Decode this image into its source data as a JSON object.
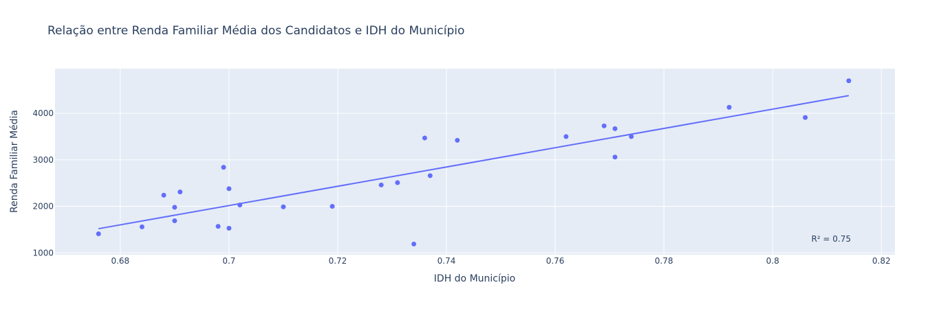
{
  "chart_data": {
    "type": "scatter",
    "title": "Relação entre Renda Familiar Média dos Candidatos e IDH do Município",
    "xlabel": "IDH do Município",
    "ylabel": "Renda Familiar Média",
    "xlim": [
      0.668,
      0.8225
    ],
    "ylim": [
      960,
      4960
    ],
    "x_ticks": [
      0.68,
      0.7,
      0.72,
      0.74,
      0.76,
      0.78,
      0.8,
      0.82
    ],
    "x_tick_labels": [
      "0.68",
      "0.7",
      "0.72",
      "0.74",
      "0.76",
      "0.78",
      "0.8",
      "0.82"
    ],
    "y_ticks": [
      1000,
      2000,
      3000,
      4000
    ],
    "y_tick_labels": [
      "1000",
      "2000",
      "3000",
      "4000"
    ],
    "grid": true,
    "legend": false,
    "annotation": "R² = 0.75",
    "colors": {
      "marker": "#636efa",
      "line": "#636efa",
      "plot_bg": "#e5ecf6",
      "grid": "#ffffff",
      "text": "#2a3f5f"
    },
    "points": [
      {
        "x": 0.676,
        "y": 1410
      },
      {
        "x": 0.684,
        "y": 1560
      },
      {
        "x": 0.688,
        "y": 2240
      },
      {
        "x": 0.69,
        "y": 1980
      },
      {
        "x": 0.69,
        "y": 1690
      },
      {
        "x": 0.691,
        "y": 2310
      },
      {
        "x": 0.698,
        "y": 1570
      },
      {
        "x": 0.699,
        "y": 2840
      },
      {
        "x": 0.7,
        "y": 2380
      },
      {
        "x": 0.7,
        "y": 1530
      },
      {
        "x": 0.702,
        "y": 2030
      },
      {
        "x": 0.71,
        "y": 1990
      },
      {
        "x": 0.719,
        "y": 2000
      },
      {
        "x": 0.728,
        "y": 2460
      },
      {
        "x": 0.731,
        "y": 2510
      },
      {
        "x": 0.734,
        "y": 1190
      },
      {
        "x": 0.736,
        "y": 3470
      },
      {
        "x": 0.737,
        "y": 2660
      },
      {
        "x": 0.742,
        "y": 3420
      },
      {
        "x": 0.762,
        "y": 3500
      },
      {
        "x": 0.769,
        "y": 3730
      },
      {
        "x": 0.771,
        "y": 3670
      },
      {
        "x": 0.771,
        "y": 3060
      },
      {
        "x": 0.774,
        "y": 3500
      },
      {
        "x": 0.792,
        "y": 4130
      },
      {
        "x": 0.806,
        "y": 3910
      },
      {
        "x": 0.814,
        "y": 4700
      }
    ],
    "trendline": {
      "x": [
        0.676,
        0.814
      ],
      "y": [
        1520,
        4380
      ]
    }
  }
}
